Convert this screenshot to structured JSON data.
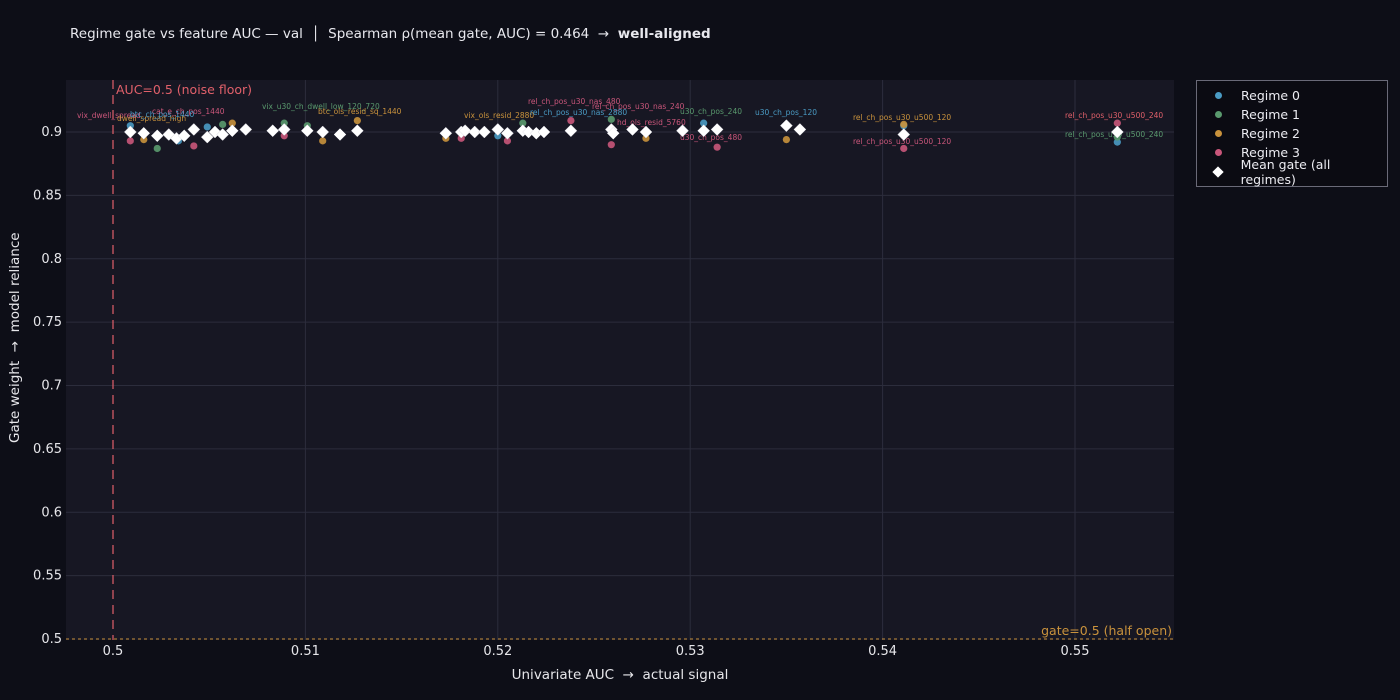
{
  "title": {
    "main": "Regime gate vs feature AUC — val  │  Spearman ρ(mean gate, AUC) = 0.464  →  ",
    "verdict": "well-aligned"
  },
  "axes": {
    "xlabel": "Univariate AUC  →  actual signal",
    "ylabel": "Gate weight  →  model reliance"
  },
  "legend": {
    "items": [
      {
        "label": "Regime 0",
        "color": "#4a9bc4",
        "shape": "dot"
      },
      {
        "label": "Regime 1",
        "color": "#5a9a6e",
        "shape": "dot"
      },
      {
        "label": "Regime 2",
        "color": "#c9923c",
        "shape": "dot"
      },
      {
        "label": "Regime 3",
        "color": "#c9567a",
        "shape": "dot"
      },
      {
        "label": "Mean gate (all regimes)",
        "color": "#ffffff",
        "shape": "diamond"
      }
    ]
  },
  "annotations": {
    "noise_floor": {
      "label": "AUC=0.5 (noise floor)",
      "color": "#e0606a",
      "x": 0.5
    },
    "half_open": {
      "label": "gate=0.5 (half open)",
      "color": "#c9923c",
      "y": 0.5
    }
  },
  "chart_data": {
    "type": "scatter",
    "title": "Regime gate vs feature AUC — val | Spearman ρ(mean gate, AUC) = 0.464 → well-aligned",
    "xlabel": "Univariate AUC → actual signal",
    "ylabel": "Gate weight → model reliance",
    "xlim": [
      0.4975,
      0.5553
    ],
    "ylim": [
      0.5,
      0.94
    ],
    "xticks": [
      0.5,
      0.51,
      0.52,
      0.53,
      0.54,
      0.55
    ],
    "yticks": [
      0.5,
      0.55,
      0.6,
      0.65,
      0.7,
      0.75,
      0.8,
      0.85,
      0.9
    ],
    "grid": true,
    "legend_position": "right-top",
    "series": [
      {
        "name": "Mean gate (all regimes)",
        "marker": "diamond",
        "x": [
          0.5009,
          0.5016,
          0.5023,
          0.5029,
          0.5033,
          0.5037,
          0.5042,
          0.5049,
          0.5053,
          0.5057,
          0.5062,
          0.5069,
          0.5083,
          0.5089,
          0.5101,
          0.5109,
          0.5118,
          0.5127,
          0.5173,
          0.5181,
          0.5183,
          0.5188,
          0.5193,
          0.52,
          0.5205,
          0.5213,
          0.5216,
          0.522,
          0.5224,
          0.5238,
          0.5259,
          0.526,
          0.527,
          0.5277,
          0.5296,
          0.5307,
          0.5314,
          0.535,
          0.5357,
          0.5411,
          0.5522
        ],
        "y": [
          0.9,
          0.899,
          0.897,
          0.898,
          0.895,
          0.897,
          0.902,
          0.896,
          0.9,
          0.898,
          0.901,
          0.902,
          0.901,
          0.902,
          0.901,
          0.9,
          0.898,
          0.901,
          0.899,
          0.9,
          0.901,
          0.9,
          0.9,
          0.902,
          0.899,
          0.901,
          0.9,
          0.899,
          0.9,
          0.901,
          0.902,
          0.899,
          0.902,
          0.9,
          0.901,
          0.901,
          0.902,
          0.905,
          0.902,
          0.898,
          0.9
        ]
      },
      {
        "name": "Regime 0",
        "x": [
          0.5009,
          0.5034,
          0.5049,
          0.52,
          0.5307,
          0.5411,
          0.5522
        ],
        "y": [
          0.905,
          0.893,
          0.904,
          0.897,
          0.907,
          0.905,
          0.892
        ]
      },
      {
        "name": "Regime 1",
        "x": [
          0.5023,
          0.5057,
          0.5089,
          0.5101,
          0.5213,
          0.5259,
          0.5522
        ],
        "y": [
          0.887,
          0.906,
          0.907,
          0.905,
          0.907,
          0.91,
          0.896
        ]
      },
      {
        "name": "Regime 2",
        "x": [
          0.5016,
          0.5062,
          0.5109,
          0.5127,
          0.5173,
          0.5277,
          0.535,
          0.5411
        ],
        "y": [
          0.894,
          0.907,
          0.893,
          0.909,
          0.895,
          0.895,
          0.894,
          0.906
        ]
      },
      {
        "name": "Regime 3",
        "x": [
          0.5009,
          0.5042,
          0.5089,
          0.5181,
          0.5205,
          0.5238,
          0.5259,
          0.5314,
          0.5411,
          0.5522
        ],
        "y": [
          0.893,
          0.889,
          0.897,
          0.895,
          0.893,
          0.909,
          0.89,
          0.888,
          0.887,
          0.907
        ]
      }
    ],
    "point_labels": [
      "vix_dwell_spread",
      "dwell_spread_high",
      "cat_e_ch_pos_1440",
      "btc_ch_pos_1440",
      "vix_u30_ch_dwell_low_120_720",
      "btc_ols_resid_sq_1440",
      "vix_ols_resid_2880",
      "rel_ch_pos_u30_nas_480",
      "rel_ch_pos_u30_nas_240",
      "rel_ch_pos_u30_nas_2880",
      "hd_ols_resid_5760",
      "u30_ch_pos_240",
      "u30_ch_pos_480",
      "u30_ch_pos_120",
      "rel_ch_pos_u30_u500_120",
      "rel_ch_pos_u30_u500_240"
    ]
  }
}
